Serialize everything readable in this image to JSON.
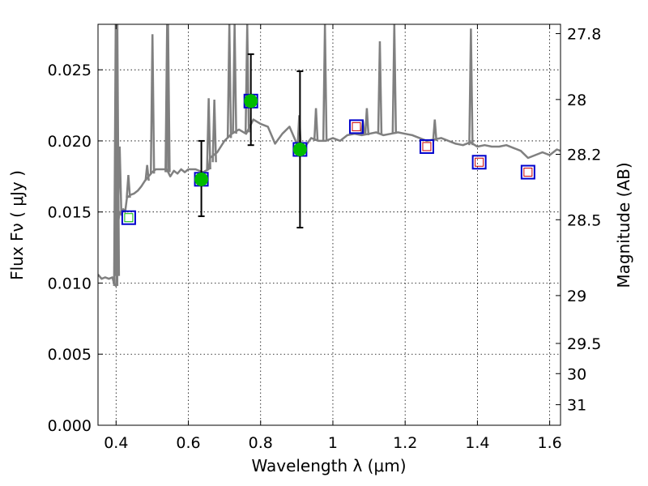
{
  "chart_data": {
    "type": "scatter",
    "title": "",
    "xlabel": "Wavelength  λ (μm)",
    "ylabel": "Flux  Fν  ( μJy )",
    "ylabel_right": "Magnitude (AB)",
    "xlim": [
      0.35,
      1.63
    ],
    "ylim": [
      0.0,
      0.0282
    ],
    "grid": true,
    "x_ticks": [
      0.4,
      0.6,
      0.8,
      1.0,
      1.2,
      1.4,
      1.6
    ],
    "x_tick_labels": [
      "0.4",
      "0.6",
      "0.8",
      "1",
      "1.2",
      "1.4",
      "1.6"
    ],
    "y_ticks": [
      0.0,
      0.005,
      0.01,
      0.015,
      0.02,
      0.025
    ],
    "y_tick_labels": [
      "0.000",
      "0.005",
      "0.010",
      "0.015",
      "0.020",
      "0.025"
    ],
    "right_ticks": [
      {
        "label": "27.8",
        "mag": 27.8
      },
      {
        "label": "28",
        "mag": 28.0
      },
      {
        "label": "28.2",
        "mag": 28.2
      },
      {
        "label": "28.5",
        "mag": 28.5
      },
      {
        "label": "29",
        "mag": 29.0
      },
      {
        "label": "29.5",
        "mag": 29.5
      },
      {
        "label": "30",
        "mag": 30.0
      },
      {
        "label": "31",
        "mag": 31.0
      }
    ],
    "series": [
      {
        "kind": "spectrum",
        "color": "#808080",
        "x": [
          0.35,
          0.36,
          0.37,
          0.38,
          0.39,
          0.395,
          0.4,
          0.402,
          0.404,
          0.41,
          0.415,
          0.42,
          0.425,
          0.43,
          0.44,
          0.45,
          0.46,
          0.47,
          0.48,
          0.49,
          0.5,
          0.51,
          0.52,
          0.53,
          0.54,
          0.55,
          0.56,
          0.57,
          0.58,
          0.59,
          0.6,
          0.62,
          0.64,
          0.656,
          0.66,
          0.68,
          0.7,
          0.72,
          0.74,
          0.76,
          0.78,
          0.8,
          0.82,
          0.84,
          0.86,
          0.88,
          0.9,
          0.92,
          0.94,
          0.96,
          0.98,
          1.0,
          1.02,
          1.04,
          1.06,
          1.08,
          1.1,
          1.12,
          1.14,
          1.16,
          1.18,
          1.2,
          1.22,
          1.24,
          1.26,
          1.28,
          1.3,
          1.32,
          1.34,
          1.36,
          1.38,
          1.4,
          1.42,
          1.44,
          1.46,
          1.48,
          1.5,
          1.52,
          1.54,
          1.56,
          1.58,
          1.6,
          1.62,
          1.63
        ],
        "y": [
          0.0106,
          0.0103,
          0.0104,
          0.0103,
          0.0104,
          0.0099,
          0.0098,
          0.011,
          0.014,
          0.015,
          0.0148,
          0.0152,
          0.015,
          0.016,
          0.0162,
          0.0163,
          0.0165,
          0.0168,
          0.0172,
          0.0175,
          0.0178,
          0.018,
          0.018,
          0.018,
          0.018,
          0.0175,
          0.0179,
          0.0177,
          0.018,
          0.0178,
          0.018,
          0.018,
          0.0178,
          0.018,
          0.0188,
          0.0192,
          0.02,
          0.0205,
          0.0208,
          0.0205,
          0.0215,
          0.0212,
          0.021,
          0.0198,
          0.0205,
          0.021,
          0.0198,
          0.0195,
          0.0202,
          0.02,
          0.02,
          0.0202,
          0.02,
          0.0204,
          0.0205,
          0.0204,
          0.0205,
          0.0206,
          0.0204,
          0.0205,
          0.0206,
          0.0205,
          0.0204,
          0.0202,
          0.02,
          0.0201,
          0.0202,
          0.02,
          0.0198,
          0.0197,
          0.0199,
          0.0196,
          0.0197,
          0.0196,
          0.0196,
          0.0197,
          0.0195,
          0.0193,
          0.0188,
          0.019,
          0.0192,
          0.019,
          0.0194,
          0.0193
        ]
      },
      {
        "kind": "emission-lines",
        "color": "#808080",
        "lines": [
          {
            "x": 0.399,
            "base": 0.0098,
            "peak": 0.0282
          },
          {
            "x": 0.4035,
            "base": 0.0105,
            "peak": 0.0282
          },
          {
            "x": 0.41,
            "base": 0.015,
            "peak": 0.0196
          },
          {
            "x": 0.434,
            "base": 0.016,
            "peak": 0.0176
          },
          {
            "x": 0.486,
            "base": 0.0172,
            "peak": 0.0183
          },
          {
            "x": 0.5007,
            "base": 0.0177,
            "peak": 0.0275
          },
          {
            "x": 0.5413,
            "base": 0.0178,
            "peak": 0.0282
          },
          {
            "x": 0.5438,
            "base": 0.0178,
            "peak": 0.0282
          },
          {
            "x": 0.6563,
            "base": 0.018,
            "peak": 0.023
          },
          {
            "x": 0.672,
            "base": 0.0185,
            "peak": 0.0229
          },
          {
            "x": 0.7135,
            "base": 0.0202,
            "peak": 0.0282
          },
          {
            "x": 0.728,
            "base": 0.0205,
            "peak": 0.0282
          },
          {
            "x": 0.763,
            "base": 0.0206,
            "peak": 0.0282
          },
          {
            "x": 0.9069,
            "base": 0.0196,
            "peak": 0.0218
          },
          {
            "x": 0.9532,
            "base": 0.02,
            "peak": 0.0223
          },
          {
            "x": 0.978,
            "base": 0.02,
            "peak": 0.0282
          },
          {
            "x": 1.083,
            "base": 0.0204,
            "peak": 0.0214
          },
          {
            "x": 1.094,
            "base": 0.0204,
            "peak": 0.0223
          },
          {
            "x": 1.13,
            "base": 0.0205,
            "peak": 0.027
          },
          {
            "x": 1.17,
            "base": 0.0205,
            "peak": 0.0282
          },
          {
            "x": 1.282,
            "base": 0.02,
            "peak": 0.0215
          },
          {
            "x": 1.382,
            "base": 0.0197,
            "peak": 0.0279
          }
        ]
      },
      {
        "kind": "model-photometry",
        "marker": "square",
        "color": "#0000cc",
        "points": [
          {
            "x": 0.435,
            "y": 0.0146
          },
          {
            "x": 0.636,
            "y": 0.0173
          },
          {
            "x": 0.773,
            "y": 0.0228
          },
          {
            "x": 0.909,
            "y": 0.0194
          },
          {
            "x": 1.065,
            "y": 0.021
          },
          {
            "x": 1.26,
            "y": 0.0196
          },
          {
            "x": 1.405,
            "y": 0.0185
          },
          {
            "x": 1.54,
            "y": 0.0178
          }
        ]
      },
      {
        "kind": "model-small-squares",
        "marker": "square",
        "color": "#cc0000",
        "points": [
          {
            "x": 1.065,
            "y": 0.021
          },
          {
            "x": 1.26,
            "y": 0.0196
          },
          {
            "x": 1.405,
            "y": 0.0185
          },
          {
            "x": 1.54,
            "y": 0.0178
          }
        ]
      },
      {
        "kind": "observed",
        "marker": "circle",
        "color": "#00bb00",
        "points": [
          {
            "x": 0.636,
            "y": 0.0173,
            "yerr_low": 0.0147,
            "yerr_high": 0.02
          },
          {
            "x": 0.773,
            "y": 0.0228,
            "yerr_low": 0.0197,
            "yerr_high": 0.0261
          },
          {
            "x": 0.909,
            "y": 0.0194,
            "yerr_low": 0.0139,
            "yerr_high": 0.0249
          }
        ]
      },
      {
        "kind": "upper-limit",
        "marker": "small-square",
        "color": "#00bb00",
        "points": [
          {
            "x": 0.435,
            "y": 0.0146
          }
        ]
      }
    ]
  }
}
